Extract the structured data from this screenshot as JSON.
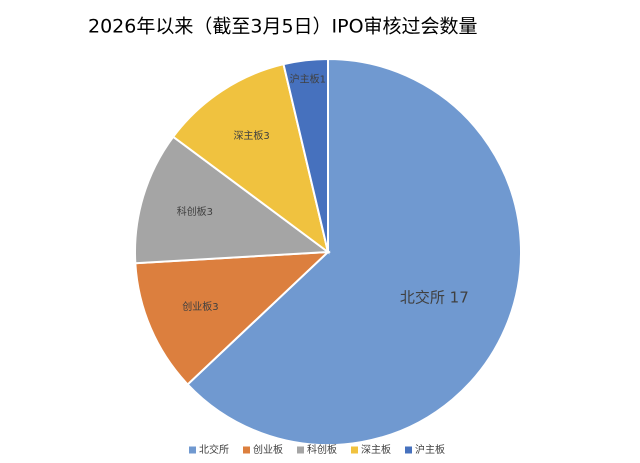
{
  "chart_data": {
    "type": "pie",
    "title": "2026年以来（截至3月5日）IPO审核过会数量",
    "categories": [
      "北交所",
      "创业板",
      "科创板",
      "深主板",
      "沪主板"
    ],
    "values": [
      17,
      3,
      3,
      3,
      1
    ],
    "value_labels": [
      "北交所 17",
      "创业板3",
      "科创板3",
      "深主板3",
      "沪主板1"
    ],
    "colors": [
      "#7099d0",
      "#dc7f3e",
      "#a5a5a5",
      "#f0c23f",
      "#4671be"
    ],
    "legend": "bottom"
  }
}
